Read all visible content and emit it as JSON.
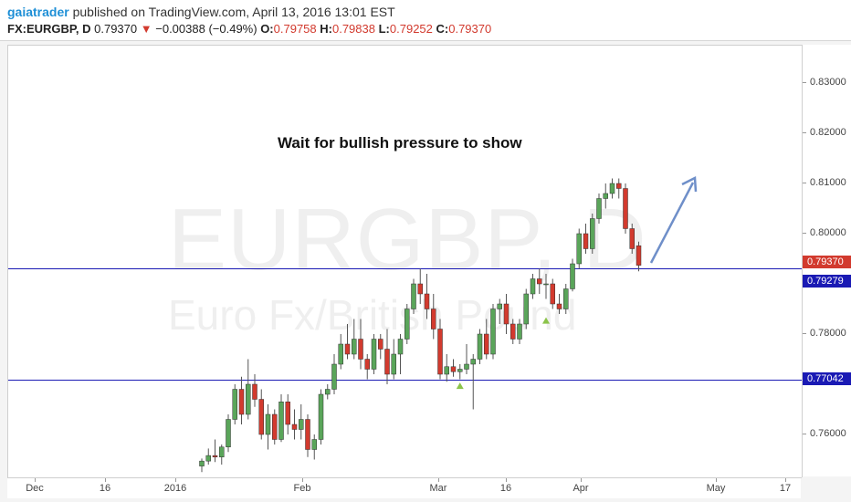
{
  "header": {
    "author": "gaiatrader",
    "published_text": "published on TradingView.com, April 13, 2016 13:01 EST",
    "symbol": "FX:EURGBP, D",
    "last": "0.79370",
    "change": "−0.00388 (−0.49%)",
    "open_label": "O:",
    "open": "0.79758",
    "high_label": "H:",
    "high": "0.79838",
    "low_label": "L:",
    "low": "0.79252",
    "close_label": "C:",
    "close": "0.79370"
  },
  "watermark": {
    "symbol": "EURGBP, D",
    "description": "Euro Fx/British Pound"
  },
  "annotation": {
    "text": "Wait for bullish pressure to show"
  },
  "price_axis": {
    "ticks": [
      "0.83000",
      "0.82000",
      "0.81000",
      "0.80000",
      "0.78000",
      "0.76000"
    ],
    "labels": [
      {
        "text": "0.79370",
        "color": "#d23a2e"
      },
      {
        "text": "0.79279",
        "color": "#1a1ab4"
      },
      {
        "text": "0.77042",
        "color": "#1a1ab4"
      }
    ]
  },
  "time_axis": {
    "labels": [
      "Dec",
      "16",
      "2016",
      "Feb",
      "Mar",
      "16",
      "Apr",
      "May",
      "17"
    ]
  },
  "colors": {
    "up": "#5aa55a",
    "down": "#d23a2e",
    "wick": "#555555",
    "line": "#1a1ab4",
    "arrow": "#6f8fc9"
  },
  "chart_data": {
    "type": "candlestick",
    "title": "FX:EURGBP, D",
    "ylim": [
      0.754,
      0.839
    ],
    "horizontal_levels": [
      0.79279,
      0.77042
    ],
    "candles": [
      {
        "o": 0.7537,
        "h": 0.7552,
        "l": 0.7525,
        "c": 0.7547
      },
      {
        "o": 0.7547,
        "h": 0.7572,
        "l": 0.754,
        "c": 0.7558
      },
      {
        "o": 0.7558,
        "h": 0.759,
        "l": 0.7545,
        "c": 0.7555
      },
      {
        "o": 0.7555,
        "h": 0.758,
        "l": 0.754,
        "c": 0.7575
      },
      {
        "o": 0.7575,
        "h": 0.764,
        "l": 0.7565,
        "c": 0.763
      },
      {
        "o": 0.763,
        "h": 0.77,
        "l": 0.762,
        "c": 0.769
      },
      {
        "o": 0.769,
        "h": 0.7715,
        "l": 0.762,
        "c": 0.764
      },
      {
        "o": 0.764,
        "h": 0.775,
        "l": 0.763,
        "c": 0.77
      },
      {
        "o": 0.77,
        "h": 0.772,
        "l": 0.7655,
        "c": 0.767
      },
      {
        "o": 0.767,
        "h": 0.769,
        "l": 0.759,
        "c": 0.76
      },
      {
        "o": 0.76,
        "h": 0.766,
        "l": 0.757,
        "c": 0.764
      },
      {
        "o": 0.764,
        "h": 0.765,
        "l": 0.758,
        "c": 0.759
      },
      {
        "o": 0.759,
        "h": 0.768,
        "l": 0.7585,
        "c": 0.7665
      },
      {
        "o": 0.7665,
        "h": 0.768,
        "l": 0.76,
        "c": 0.762
      },
      {
        "o": 0.762,
        "h": 0.765,
        "l": 0.759,
        "c": 0.761
      },
      {
        "o": 0.761,
        "h": 0.766,
        "l": 0.759,
        "c": 0.763
      },
      {
        "o": 0.763,
        "h": 0.764,
        "l": 0.7555,
        "c": 0.757
      },
      {
        "o": 0.757,
        "h": 0.76,
        "l": 0.755,
        "c": 0.759
      },
      {
        "o": 0.759,
        "h": 0.769,
        "l": 0.758,
        "c": 0.768
      },
      {
        "o": 0.768,
        "h": 0.77,
        "l": 0.767,
        "c": 0.769
      },
      {
        "o": 0.769,
        "h": 0.776,
        "l": 0.768,
        "c": 0.774
      },
      {
        "o": 0.774,
        "h": 0.78,
        "l": 0.773,
        "c": 0.778
      },
      {
        "o": 0.778,
        "h": 0.782,
        "l": 0.775,
        "c": 0.776
      },
      {
        "o": 0.776,
        "h": 0.783,
        "l": 0.775,
        "c": 0.779
      },
      {
        "o": 0.779,
        "h": 0.783,
        "l": 0.773,
        "c": 0.775
      },
      {
        "o": 0.775,
        "h": 0.776,
        "l": 0.771,
        "c": 0.773
      },
      {
        "o": 0.773,
        "h": 0.78,
        "l": 0.772,
        "c": 0.779
      },
      {
        "o": 0.779,
        "h": 0.78,
        "l": 0.775,
        "c": 0.777
      },
      {
        "o": 0.777,
        "h": 0.781,
        "l": 0.77,
        "c": 0.772
      },
      {
        "o": 0.772,
        "h": 0.779,
        "l": 0.771,
        "c": 0.776
      },
      {
        "o": 0.776,
        "h": 0.78,
        "l": 0.772,
        "c": 0.779
      },
      {
        "o": 0.779,
        "h": 0.786,
        "l": 0.778,
        "c": 0.785
      },
      {
        "o": 0.785,
        "h": 0.791,
        "l": 0.784,
        "c": 0.79
      },
      {
        "o": 0.79,
        "h": 0.793,
        "l": 0.786,
        "c": 0.788
      },
      {
        "o": 0.788,
        "h": 0.792,
        "l": 0.783,
        "c": 0.785
      },
      {
        "o": 0.785,
        "h": 0.788,
        "l": 0.779,
        "c": 0.781
      },
      {
        "o": 0.781,
        "h": 0.783,
        "l": 0.771,
        "c": 0.772
      },
      {
        "o": 0.772,
        "h": 0.776,
        "l": 0.7705,
        "c": 0.7735
      },
      {
        "o": 0.7735,
        "h": 0.775,
        "l": 0.7715,
        "c": 0.7725
      },
      {
        "o": 0.7725,
        "h": 0.774,
        "l": 0.771,
        "c": 0.773
      },
      {
        "o": 0.773,
        "h": 0.778,
        "l": 0.772,
        "c": 0.774
      },
      {
        "o": 0.774,
        "h": 0.776,
        "l": 0.765,
        "c": 0.775
      },
      {
        "o": 0.775,
        "h": 0.781,
        "l": 0.774,
        "c": 0.78
      },
      {
        "o": 0.78,
        "h": 0.783,
        "l": 0.775,
        "c": 0.776
      },
      {
        "o": 0.776,
        "h": 0.786,
        "l": 0.775,
        "c": 0.785
      },
      {
        "o": 0.785,
        "h": 0.787,
        "l": 0.782,
        "c": 0.786
      },
      {
        "o": 0.786,
        "h": 0.788,
        "l": 0.78,
        "c": 0.782
      },
      {
        "o": 0.782,
        "h": 0.783,
        "l": 0.778,
        "c": 0.779
      },
      {
        "o": 0.779,
        "h": 0.783,
        "l": 0.778,
        "c": 0.782
      },
      {
        "o": 0.782,
        "h": 0.789,
        "l": 0.781,
        "c": 0.788
      },
      {
        "o": 0.788,
        "h": 0.792,
        "l": 0.787,
        "c": 0.791
      },
      {
        "o": 0.791,
        "h": 0.793,
        "l": 0.788,
        "c": 0.79
      },
      {
        "o": 0.79,
        "h": 0.792,
        "l": 0.787,
        "c": 0.79
      },
      {
        "o": 0.79,
        "h": 0.791,
        "l": 0.785,
        "c": 0.786
      },
      {
        "o": 0.786,
        "h": 0.788,
        "l": 0.784,
        "c": 0.785
      },
      {
        "o": 0.785,
        "h": 0.79,
        "l": 0.784,
        "c": 0.789
      },
      {
        "o": 0.789,
        "h": 0.795,
        "l": 0.7885,
        "c": 0.794
      },
      {
        "o": 0.794,
        "h": 0.801,
        "l": 0.793,
        "c": 0.8
      },
      {
        "o": 0.8,
        "h": 0.802,
        "l": 0.796,
        "c": 0.797
      },
      {
        "o": 0.797,
        "h": 0.804,
        "l": 0.796,
        "c": 0.803
      },
      {
        "o": 0.803,
        "h": 0.808,
        "l": 0.802,
        "c": 0.807
      },
      {
        "o": 0.807,
        "h": 0.81,
        "l": 0.805,
        "c": 0.808
      },
      {
        "o": 0.808,
        "h": 0.811,
        "l": 0.807,
        "c": 0.81
      },
      {
        "o": 0.81,
        "h": 0.811,
        "l": 0.807,
        "c": 0.809
      },
      {
        "o": 0.809,
        "h": 0.81,
        "l": 0.8,
        "c": 0.801
      },
      {
        "o": 0.801,
        "h": 0.802,
        "l": 0.796,
        "c": 0.797
      },
      {
        "o": 0.7976,
        "h": 0.7984,
        "l": 0.7925,
        "c": 0.7937
      }
    ],
    "markers": [
      {
        "index": 39,
        "price": 0.7698,
        "shape": "triangle-up",
        "color": "#8bc34a"
      },
      {
        "index": 52,
        "price": 0.7828,
        "shape": "triangle-up",
        "color": "#8bc34a"
      }
    ]
  }
}
